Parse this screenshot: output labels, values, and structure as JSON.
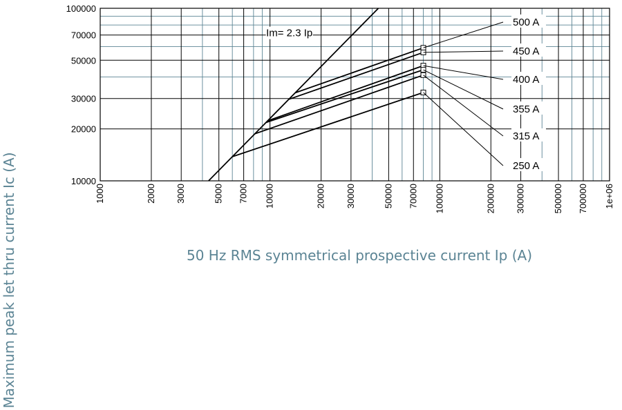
{
  "chart_data": {
    "type": "line",
    "title": "",
    "xlabel": "50 Hz RMS symmetrical prospective current Ip (A)",
    "ylabel": "Maximum peak let thru current Ic (A)",
    "xscale": "log",
    "yscale": "log",
    "xlim": [
      1000,
      1000000
    ],
    "ylim": [
      10000,
      100000
    ],
    "x_ticks": [
      1000,
      2000,
      3000,
      5000,
      7000,
      10000,
      20000,
      30000,
      50000,
      70000,
      100000,
      200000,
      300000,
      500000,
      700000,
      1000000
    ],
    "x_tick_labels": [
      "1000",
      "2000",
      "3000",
      "5000",
      "7000",
      "10000",
      "20000",
      "30000",
      "50000",
      "70000",
      "100000",
      "200000",
      "300000",
      "500000",
      "700000",
      "1e+06"
    ],
    "y_ticks": [
      10000,
      20000,
      30000,
      50000,
      70000,
      100000
    ],
    "y_tick_labels": [
      "10000",
      "20000",
      "30000",
      "50000",
      "70000",
      "100000"
    ],
    "grid": true,
    "grid_colors": {
      "major": "#000000",
      "minor": "#5b8494"
    },
    "axis_title_color": "#5b8494",
    "reference_line": {
      "label": "Im= 2.3 Ip",
      "factor": 2.3
    },
    "series": [
      {
        "name": "500 A",
        "points": [
          [
            14100,
            32400
          ],
          [
            80000,
            59000
          ]
        ]
      },
      {
        "name": "450 A",
        "points": [
          [
            12800,
            29600
          ],
          [
            80000,
            55500
          ]
        ]
      },
      {
        "name": "400 A",
        "points": [
          [
            9700,
            22300
          ],
          [
            80000,
            46500
          ]
        ]
      },
      {
        "name": "355 A",
        "points": [
          [
            9500,
            21800
          ],
          [
            80000,
            44000
          ]
        ]
      },
      {
        "name": "315 A",
        "points": [
          [
            8100,
            18700
          ],
          [
            80000,
            41000
          ]
        ]
      },
      {
        "name": "250 A",
        "points": [
          [
            6000,
            13800
          ],
          [
            80000,
            32500
          ]
        ]
      }
    ]
  }
}
